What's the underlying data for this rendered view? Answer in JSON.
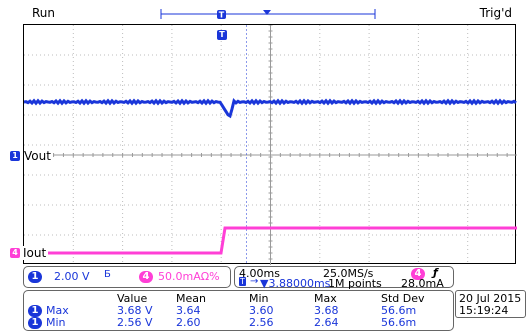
{
  "status": {
    "run": "Run",
    "trig": "Trig'd"
  },
  "channels": {
    "ch1": {
      "number": "1",
      "label": "Vout",
      "color": "#1a36d9"
    },
    "ch4": {
      "number": "4",
      "label": "Iout",
      "color": "#ff3fd6"
    }
  },
  "trigger_marker": "T",
  "scale": {
    "ch1_scale": "2.00 V",
    "ch1_bw": "Б",
    "ch4_scale": "50.0mAΩ%",
    "ch4_number": "4"
  },
  "timebase": {
    "time_div": "4.00ms",
    "sample_rate": "25.0MS/s",
    "trigger_ch": "4",
    "trigger_slope": "ƒ",
    "position": "▼3.88000ms",
    "record_length": "1M points",
    "trigger_level": "28.0mA"
  },
  "measurements": {
    "headers": [
      "Value",
      "Mean",
      "Min",
      "Max",
      "Std Dev"
    ],
    "rows": [
      {
        "ch": "1",
        "name": "Max",
        "values": [
          "3.68 V",
          "3.64",
          "3.60",
          "3.68",
          "56.6m"
        ]
      },
      {
        "ch": "1",
        "name": "Min",
        "values": [
          "2.56 V",
          "2.60",
          "2.56",
          "2.64",
          "56.6m"
        ]
      }
    ]
  },
  "datetime": {
    "date": "20 Jul 2015",
    "time": "15:19:24"
  }
}
